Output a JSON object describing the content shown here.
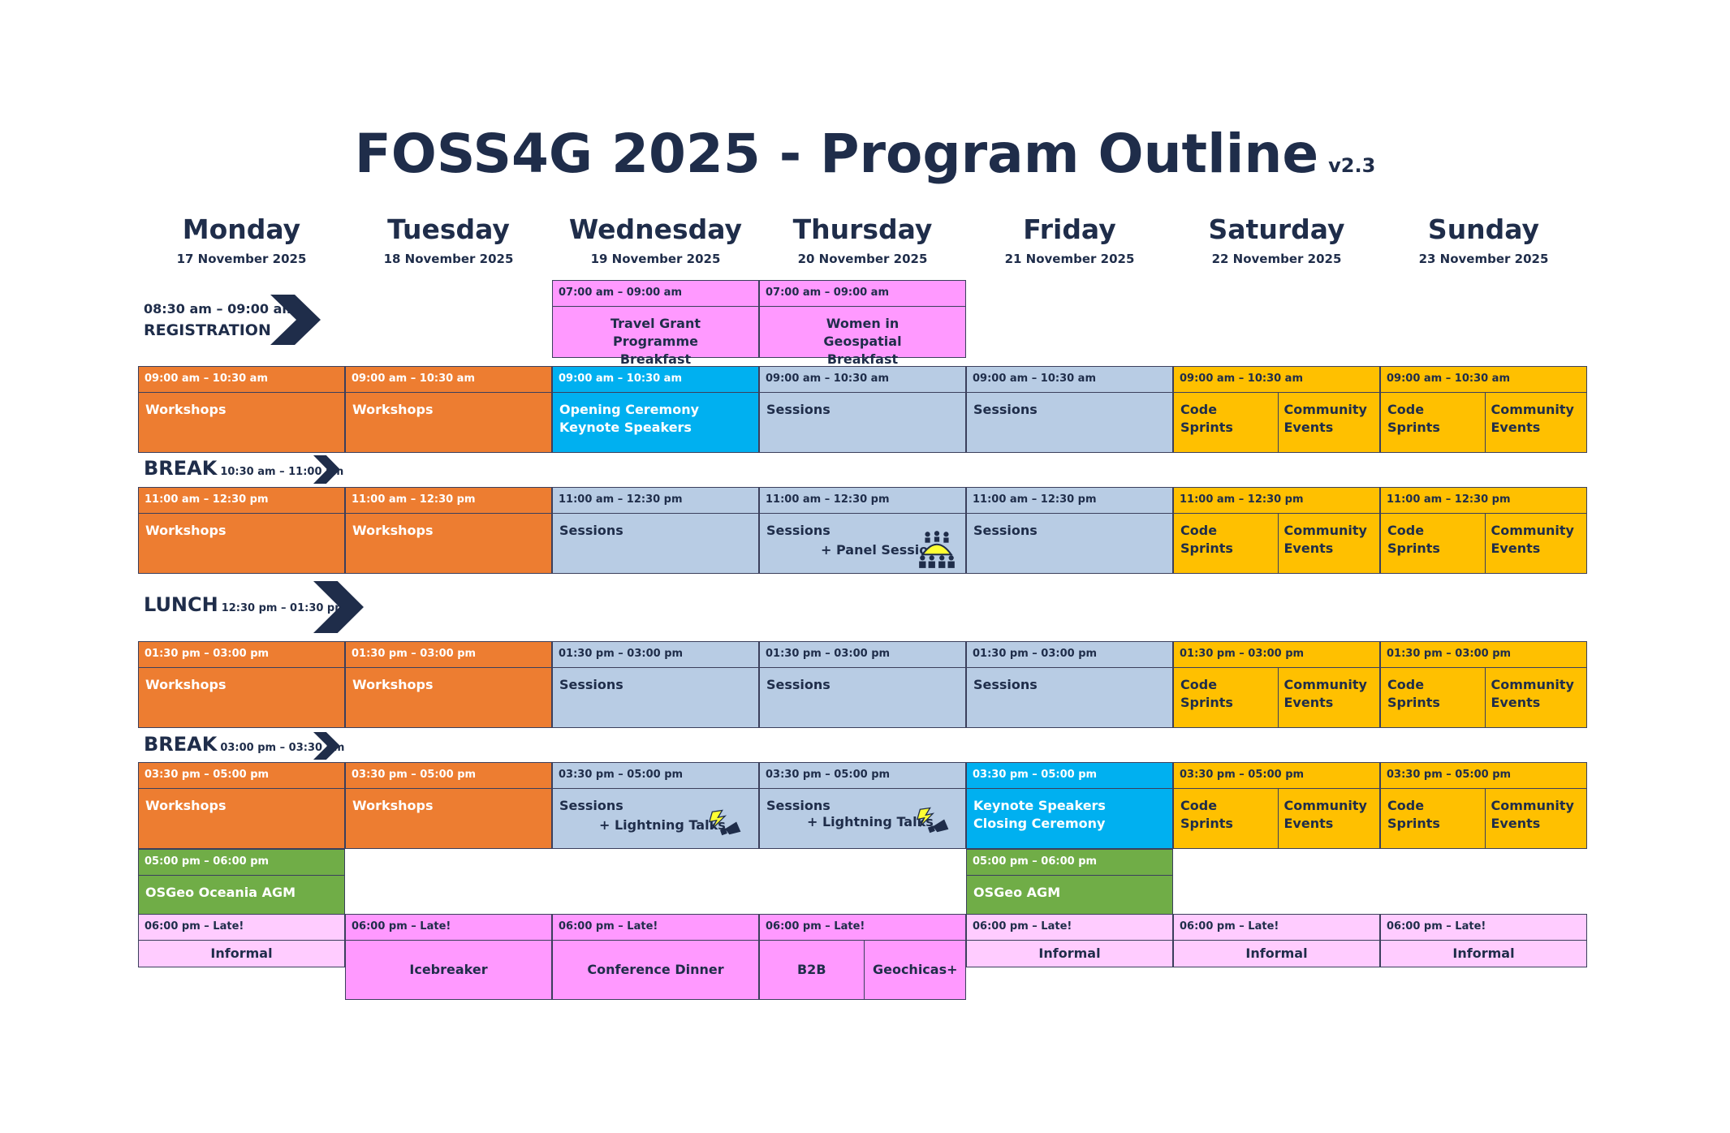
{
  "header": {
    "title": "FOSS4G 2025 - Program Outline",
    "version": "v2.3"
  },
  "days": [
    {
      "name": "Monday",
      "date": "17 November 2025"
    },
    {
      "name": "Tuesday",
      "date": "18 November 2025"
    },
    {
      "name": "Wednesday",
      "date": "19 November 2025"
    },
    {
      "name": "Thursday",
      "date": "20 November 2025"
    },
    {
      "name": "Friday",
      "date": "21 November 2025"
    },
    {
      "name": "Saturday",
      "date": "22 November 2025"
    },
    {
      "name": "Sunday",
      "date": "23 November 2025"
    }
  ],
  "registration": {
    "time": "08:30 am – 09:00 am",
    "label": "REGISTRATION"
  },
  "break1": {
    "label": "BREAK",
    "time": "10:30 am – 11:00 am"
  },
  "lunch": {
    "label": "LUNCH",
    "time": "12:30 pm – 01:30 pm"
  },
  "break2": {
    "label": "BREAK",
    "time": "03:00 pm – 03:30 pm"
  },
  "breakfast": [
    {
      "time": "07:00 am – 09:00 am",
      "label": "Travel Grant Programme Breakfast"
    },
    {
      "time": "07:00 am – 09:00 am",
      "label": "Women in Geospatial Breakfast"
    }
  ],
  "colors": {
    "workshops": "#ed7d31",
    "keynote": "#00b0f0",
    "sessions": "#b8cce4",
    "sprints": "#ffc000",
    "agm": "#70ad47",
    "social": "#ff99ff",
    "informal": "#ffccff",
    "text_dark": "#1f2d4a"
  },
  "icons": {
    "panel": "panel-audience-icon",
    "lightning": "lightning-megaphone-icon"
  },
  "slots": [
    {
      "time": "09:00 am – 10:30 am",
      "mon": "Workshops",
      "tue": "Workshops",
      "wed": "Opening Ceremony\nKeynote Speakers",
      "thu": "Sessions",
      "fri": "Sessions",
      "sat_a": "Code\nSprints",
      "sat_b": "Community\nEvents",
      "sun_a": "Code\nSprints",
      "sun_b": "Community\nEvents"
    },
    {
      "time": "11:00 am – 12:30 pm",
      "mon": "Workshops",
      "tue": "Workshops",
      "wed": "Sessions",
      "thu": "Sessions",
      "thu_extra": "+ Panel Session",
      "fri": "Sessions",
      "sat_a": "Code\nSprints",
      "sat_b": "Community\nEvents",
      "sun_a": "Code\nSprints",
      "sun_b": "Community\nEvents"
    },
    {
      "time": "01:30 pm – 03:00 pm",
      "mon": "Workshops",
      "tue": "Workshops",
      "wed": "Sessions",
      "thu": "Sessions",
      "fri": "Sessions",
      "sat_a": "Code\nSprints",
      "sat_b": "Community\nEvents",
      "sun_a": "Code\nSprints",
      "sun_b": "Community\nEvents"
    },
    {
      "time": "03:30 pm – 05:00 pm",
      "mon": "Workshops",
      "tue": "Workshops",
      "wed": "Sessions",
      "wed_extra": "+ Lightning Talks",
      "thu": "Sessions",
      "thu_extra": "+ Lightning Talks",
      "fri": "Keynote Speakers\nClosing Ceremony",
      "sat_a": "Code\nSprints",
      "sat_b": "Community\nEvents",
      "sun_a": "Code\nSprints",
      "sun_b": "Community\nEvents"
    }
  ],
  "agm": [
    {
      "time": "05:00 pm – 06:00 pm",
      "label": "OSGeo Oceania AGM"
    },
    {
      "time": "05:00 pm – 06:00 pm",
      "label": "OSGeo AGM"
    }
  ],
  "evening": {
    "time": "06:00 pm – Late!",
    "mon": "Informal",
    "tue": "Icebreaker",
    "wed": "Conference Dinner",
    "thu_a": "B2B",
    "thu_b": "Geochicas+",
    "fri": "Informal",
    "sat": "Informal",
    "sun": "Informal"
  }
}
